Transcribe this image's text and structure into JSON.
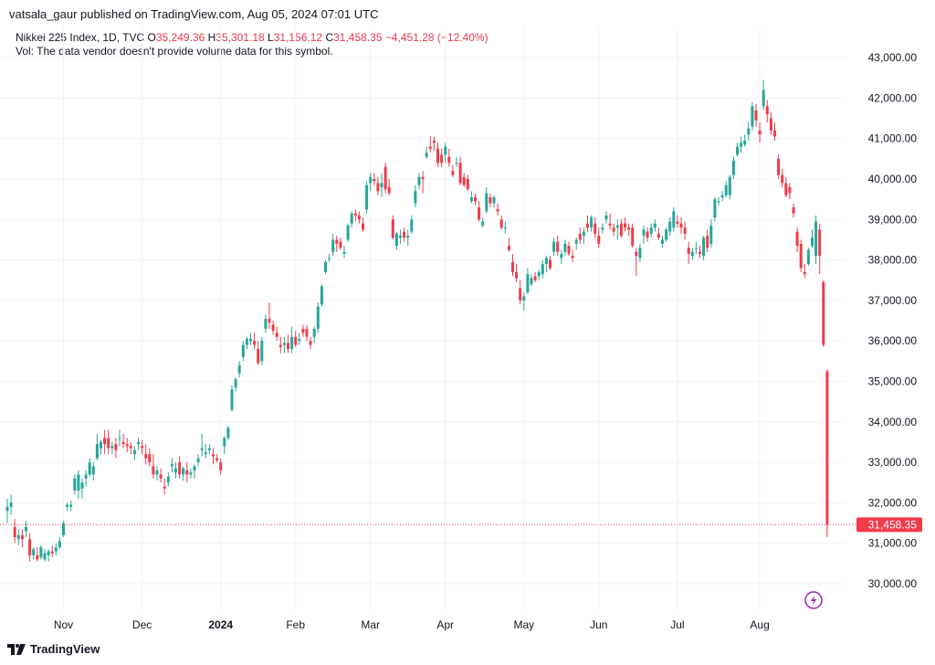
{
  "publisher": "vatsala_gaur published on TradingView.com, Aug 05, 2024 07:01 UTC",
  "legend": {
    "title": "Nikkei 225 Index, 1D, TVC",
    "o_label": "O",
    "o_value": "35,249.36",
    "h_label": "H",
    "h_value": "35,301.18",
    "l_label": "L",
    "l_value": "31,156.12",
    "c_label": "C",
    "c_value": "31,458.35",
    "change": "−4,451.28 (−12.40%)",
    "vol_note": "Vol: The data vendor doesn't provide volume data for this symbol."
  },
  "footer": {
    "brand": "TradingView",
    "logo_icon": "tradingview-logo-icon"
  },
  "colors": {
    "up": "#26a69a",
    "down": "#ef3b4a",
    "grid": "#f0f3fa",
    "text": "#131722",
    "last_price_bg": "#ef3b4a"
  },
  "chart_data": {
    "type": "candlestick",
    "symbol": "Nikkei 225 Index",
    "interval": "1D",
    "ylim": [
      29500,
      43200
    ],
    "y_ticks": [
      30000,
      31000,
      32000,
      33000,
      34000,
      35000,
      36000,
      37000,
      38000,
      39000,
      40000,
      41000,
      42000,
      43000
    ],
    "y_tick_labels": [
      "30,000.00",
      "31,000.00",
      "32,000.00",
      "33,000.00",
      "34,000.00",
      "35,000.00",
      "36,000.00",
      "37,000.00",
      "38,000.00",
      "39,000.00",
      "40,000.00",
      "41,000.00",
      "42,000.00",
      "43,000.00"
    ],
    "x_labels": [
      {
        "label": "Nov",
        "bar": 15,
        "bold": false
      },
      {
        "label": "Dec",
        "bar": 36,
        "bold": false
      },
      {
        "label": "2024",
        "bar": 57,
        "bold": true
      },
      {
        "label": "Feb",
        "bar": 77,
        "bold": false
      },
      {
        "label": "Mar",
        "bar": 97,
        "bold": false
      },
      {
        "label": "Apr",
        "bar": 117,
        "bold": false
      },
      {
        "label": "May",
        "bar": 138,
        "bold": false
      },
      {
        "label": "Jun",
        "bar": 158,
        "bold": false
      },
      {
        "label": "Jul",
        "bar": 179,
        "bold": false
      },
      {
        "label": "Aug",
        "bar": 201,
        "bold": false
      }
    ],
    "last_price": 31458.35,
    "last_price_label": "31,458.35",
    "grid": true,
    "candles": [
      [
        31800,
        32100,
        31500,
        31900
      ],
      [
        31900,
        32200,
        31700,
        32000
      ],
      [
        31400,
        31600,
        31000,
        31150
      ],
      [
        31100,
        31350,
        30950,
        31200
      ],
      [
        31200,
        31350,
        30900,
        31100
      ],
      [
        31300,
        31550,
        31150,
        31400
      ],
      [
        31100,
        31250,
        30550,
        30700
      ],
      [
        30700,
        30900,
        30600,
        30850
      ],
      [
        30700,
        30900,
        30550,
        30600
      ],
      [
        30650,
        30950,
        30600,
        30900
      ],
      [
        30600,
        30850,
        30550,
        30750
      ],
      [
        30700,
        30850,
        30550,
        30800
      ],
      [
        30800,
        30950,
        30650,
        30750
      ],
      [
        30800,
        31000,
        30700,
        30900
      ],
      [
        30900,
        31150,
        30850,
        31050
      ],
      [
        31200,
        31550,
        31150,
        31500
      ],
      [
        31900,
        32000,
        31800,
        31950
      ],
      [
        31900,
        32050,
        31800,
        31950
      ],
      [
        32300,
        32700,
        32200,
        32600
      ],
      [
        32300,
        32800,
        32100,
        32700
      ],
      [
        32350,
        32600,
        32100,
        32500
      ],
      [
        32600,
        32800,
        32400,
        32700
      ],
      [
        32700,
        33100,
        32650,
        33000
      ],
      [
        32700,
        33000,
        32550,
        32900
      ],
      [
        33100,
        33700,
        33050,
        33450
      ],
      [
        33350,
        33550,
        33200,
        33500
      ],
      [
        33600,
        33800,
        33200,
        33450
      ],
      [
        33600,
        33800,
        33200,
        33350
      ],
      [
        33350,
        33500,
        33200,
        33400
      ],
      [
        33450,
        33600,
        33100,
        33300
      ],
      [
        33600,
        33800,
        33400,
        33600
      ],
      [
        33500,
        33700,
        33350,
        33450
      ],
      [
        33450,
        33600,
        33250,
        33400
      ],
      [
        33400,
        33500,
        33200,
        33350
      ],
      [
        33200,
        33400,
        33050,
        33300
      ],
      [
        33450,
        33600,
        33300,
        33500
      ],
      [
        33400,
        33550,
        33200,
        33350
      ],
      [
        33200,
        33450,
        32950,
        33100
      ],
      [
        33200,
        33350,
        32900,
        33000
      ],
      [
        32900,
        33200,
        32600,
        32700
      ],
      [
        32700,
        32900,
        32550,
        32800
      ],
      [
        32700,
        32850,
        32500,
        32600
      ],
      [
        32400,
        32600,
        32200,
        32350
      ],
      [
        32500,
        32750,
        32400,
        32650
      ],
      [
        32900,
        33100,
        32750,
        32950
      ],
      [
        32750,
        33000,
        32600,
        32850
      ],
      [
        33000,
        33150,
        32600,
        32700
      ],
      [
        32700,
        32900,
        32550,
        32850
      ],
      [
        32800,
        33000,
        32500,
        32700
      ],
      [
        32700,
        32850,
        32600,
        32750
      ],
      [
        32800,
        32950,
        32600,
        32900
      ],
      [
        33000,
        33200,
        32900,
        33100
      ],
      [
        33300,
        33700,
        33150,
        33350
      ],
      [
        33200,
        33450,
        33100,
        33250
      ],
      [
        33300,
        33450,
        33200,
        33350
      ],
      [
        33200,
        33350,
        32950,
        33150
      ],
      [
        33100,
        33200,
        33000,
        33050
      ],
      [
        33000,
        33100,
        32700,
        32800
      ],
      [
        33400,
        33650,
        33200,
        33600
      ],
      [
        33600,
        33900,
        33550,
        33850
      ],
      [
        34300,
        34900,
        34250,
        34800
      ],
      [
        34850,
        35100,
        34750,
        35050
      ],
      [
        35200,
        35500,
        35100,
        35400
      ],
      [
        35600,
        36000,
        35500,
        35900
      ],
      [
        35900,
        36100,
        35800,
        36050
      ],
      [
        36000,
        36200,
        35900,
        36050
      ],
      [
        36000,
        36200,
        35800,
        35900
      ],
      [
        35800,
        36000,
        35400,
        35450
      ],
      [
        35500,
        36100,
        35400,
        36000
      ],
      [
        36300,
        36650,
        36200,
        36550
      ],
      [
        36550,
        36950,
        36300,
        36450
      ],
      [
        36400,
        36500,
        36150,
        36250
      ],
      [
        36200,
        36350,
        36000,
        36100
      ],
      [
        35900,
        36100,
        35700,
        35850
      ],
      [
        35900,
        36100,
        35700,
        35950
      ],
      [
        35950,
        36150,
        35700,
        35800
      ],
      [
        35800,
        36350,
        35700,
        36100
      ],
      [
        36100,
        36250,
        35850,
        35900
      ],
      [
        36000,
        36200,
        35900,
        36050
      ],
      [
        36300,
        36400,
        36100,
        36200
      ],
      [
        36300,
        36400,
        36000,
        36100
      ],
      [
        36000,
        36100,
        35800,
        35900
      ],
      [
        36100,
        36350,
        35950,
        36300
      ],
      [
        36300,
        36950,
        36200,
        36850
      ],
      [
        36900,
        37400,
        36850,
        37350
      ],
      [
        37700,
        38000,
        37650,
        37950
      ],
      [
        38050,
        38150,
        37950,
        38050
      ],
      [
        38200,
        38650,
        38100,
        38500
      ],
      [
        38500,
        38600,
        38200,
        38400
      ],
      [
        38450,
        38550,
        38250,
        38300
      ],
      [
        38150,
        38350,
        38050,
        38200
      ],
      [
        38500,
        38900,
        38450,
        38850
      ],
      [
        38900,
        39200,
        38800,
        39150
      ],
      [
        39150,
        39250,
        38950,
        39100
      ],
      [
        39100,
        39200,
        38900,
        39000
      ],
      [
        38900,
        39050,
        38700,
        38750
      ],
      [
        39250,
        39950,
        39150,
        39850
      ],
      [
        39900,
        40150,
        39700,
        40050
      ],
      [
        40000,
        40150,
        39850,
        39950
      ],
      [
        39900,
        40050,
        39600,
        39700
      ],
      [
        39800,
        40150,
        39550,
        39900
      ],
      [
        40300,
        40400,
        39650,
        39750
      ],
      [
        39800,
        40000,
        39600,
        39650
      ],
      [
        39000,
        39100,
        38500,
        38550
      ],
      [
        38350,
        38700,
        38250,
        38650
      ],
      [
        38550,
        38750,
        38400,
        38600
      ],
      [
        38700,
        38800,
        38450,
        38550
      ],
      [
        38550,
        38750,
        38350,
        38600
      ],
      [
        38700,
        39100,
        38650,
        39000
      ],
      [
        39400,
        39850,
        39300,
        39700
      ],
      [
        39850,
        40150,
        39750,
        40050
      ],
      [
        40050,
        40200,
        39650,
        40000
      ],
      [
        40550,
        40800,
        40500,
        40650
      ],
      [
        40800,
        41050,
        40650,
        40750
      ],
      [
        40950,
        41050,
        40700,
        40900
      ],
      [
        40750,
        40900,
        40300,
        40400
      ],
      [
        40600,
        40750,
        40300,
        40400
      ],
      [
        40600,
        40900,
        40400,
        40800
      ],
      [
        40550,
        40750,
        40300,
        40400
      ],
      [
        40200,
        40350,
        40050,
        40100
      ],
      [
        40400,
        40550,
        40300,
        40400
      ],
      [
        40400,
        40550,
        39850,
        39900
      ],
      [
        40050,
        40150,
        39800,
        39850
      ],
      [
        40000,
        40100,
        39700,
        39750
      ],
      [
        39450,
        39700,
        39400,
        39550
      ],
      [
        39550,
        39650,
        39350,
        39450
      ],
      [
        39300,
        39450,
        38950,
        39000
      ],
      [
        38850,
        39050,
        38800,
        38950
      ],
      [
        39200,
        39800,
        39150,
        39650
      ],
      [
        39550,
        39650,
        39300,
        39400
      ],
      [
        39400,
        39600,
        39300,
        39550
      ],
      [
        39250,
        39400,
        39100,
        39200
      ],
      [
        39000,
        39100,
        38750,
        38800
      ],
      [
        38800,
        38950,
        38650,
        38800
      ],
      [
        38350,
        38550,
        38200,
        38250
      ],
      [
        37950,
        38150,
        37600,
        37700
      ],
      [
        37700,
        37900,
        37450,
        37550
      ],
      [
        37300,
        37500,
        36900,
        37000
      ],
      [
        37000,
        37200,
        36750,
        37100
      ],
      [
        37200,
        37800,
        37150,
        37650
      ],
      [
        37400,
        37650,
        37350,
        37550
      ],
      [
        37600,
        37700,
        37450,
        37500
      ],
      [
        37600,
        37750,
        37500,
        37700
      ],
      [
        37650,
        38000,
        37550,
        37900
      ],
      [
        37900,
        38100,
        37700,
        38050
      ],
      [
        38000,
        38100,
        37750,
        37800
      ],
      [
        38200,
        38550,
        38100,
        38450
      ],
      [
        38450,
        38600,
        38100,
        38200
      ],
      [
        38050,
        38250,
        37900,
        38150
      ],
      [
        38200,
        38500,
        38100,
        38400
      ],
      [
        38350,
        38450,
        38100,
        38150
      ],
      [
        38100,
        38250,
        37950,
        38050
      ],
      [
        38400,
        38550,
        38250,
        38500
      ],
      [
        38650,
        38800,
        38400,
        38500
      ],
      [
        38600,
        38800,
        38400,
        38700
      ],
      [
        38900,
        39100,
        38700,
        38800
      ],
      [
        38800,
        39100,
        38700,
        39050
      ],
      [
        38900,
        39050,
        38550,
        38650
      ],
      [
        38600,
        38800,
        38300,
        38400
      ],
      [
        38750,
        38900,
        38650,
        38800
      ],
      [
        39000,
        39200,
        38900,
        39100
      ],
      [
        38900,
        39150,
        38750,
        38850
      ],
      [
        38800,
        38900,
        38600,
        38700
      ],
      [
        38800,
        39000,
        38500,
        38850
      ],
      [
        38900,
        39000,
        38550,
        38600
      ],
      [
        38900,
        39050,
        38700,
        38800
      ],
      [
        38800,
        38900,
        38600,
        38750
      ],
      [
        38800,
        38900,
        38300,
        38350
      ],
      [
        38200,
        38300,
        37600,
        38100
      ],
      [
        38050,
        38400,
        37950,
        38300
      ],
      [
        38600,
        38850,
        38400,
        38750
      ],
      [
        38700,
        38800,
        38450,
        38550
      ],
      [
        38650,
        38900,
        38550,
        38800
      ],
      [
        38800,
        39000,
        38700,
        38900
      ],
      [
        38650,
        38800,
        38500,
        38550
      ],
      [
        38400,
        38600,
        38300,
        38500
      ],
      [
        38500,
        38800,
        38450,
        38750
      ],
      [
        38700,
        39050,
        38600,
        38950
      ],
      [
        38800,
        39300,
        38700,
        39200
      ],
      [
        38950,
        39100,
        38800,
        38900
      ],
      [
        38900,
        39050,
        38650,
        38800
      ],
      [
        38800,
        38950,
        38500,
        38650
      ],
      [
        38300,
        38450,
        37900,
        38150
      ],
      [
        38100,
        38300,
        38000,
        38200
      ],
      [
        38300,
        38450,
        38150,
        38300
      ],
      [
        38200,
        38350,
        38050,
        38150
      ],
      [
        38100,
        38600,
        38000,
        38550
      ],
      [
        38600,
        38750,
        38200,
        38300
      ],
      [
        38400,
        39000,
        38300,
        38850
      ],
      [
        39050,
        39550,
        38950,
        39500
      ],
      [
        39450,
        39550,
        39350,
        39450
      ],
      [
        39550,
        39700,
        39450,
        39600
      ],
      [
        39600,
        39950,
        39550,
        39850
      ],
      [
        39600,
        40100,
        39500,
        40050
      ],
      [
        40100,
        40550,
        40000,
        40450
      ],
      [
        40600,
        40900,
        40550,
        40800
      ],
      [
        40800,
        41050,
        40650,
        40900
      ],
      [
        40850,
        41100,
        40800,
        40950
      ],
      [
        41100,
        41400,
        40950,
        41250
      ],
      [
        41300,
        41900,
        41200,
        41800
      ],
      [
        41700,
        41850,
        41300,
        41450
      ],
      [
        41200,
        41400,
        40900,
        41100
      ],
      [
        41800,
        42450,
        41700,
        42200
      ],
      [
        41800,
        41950,
        41400,
        41600
      ],
      [
        41500,
        41650,
        41100,
        41200
      ],
      [
        41200,
        41400,
        40950,
        41050
      ],
      [
        40500,
        40600,
        40000,
        40100
      ],
      [
        40100,
        40250,
        39800,
        39900
      ],
      [
        39900,
        40050,
        39550,
        39600
      ],
      [
        39800,
        39900,
        39500,
        39650
      ],
      [
        39300,
        39400,
        39050,
        39150
      ],
      [
        38700,
        38800,
        38200,
        38350
      ],
      [
        38400,
        38500,
        37700,
        37800
      ],
      [
        37700,
        37900,
        37550,
        37650
      ],
      [
        37900,
        38300,
        37850,
        38250
      ],
      [
        38350,
        38750,
        38300,
        38550
      ],
      [
        38100,
        39100,
        37900,
        38950
      ],
      [
        38750,
        38900,
        37650,
        38100
      ],
      [
        37450,
        37500,
        35850,
        35900
      ],
      [
        35250,
        35300,
        31156,
        31458
      ]
    ]
  }
}
